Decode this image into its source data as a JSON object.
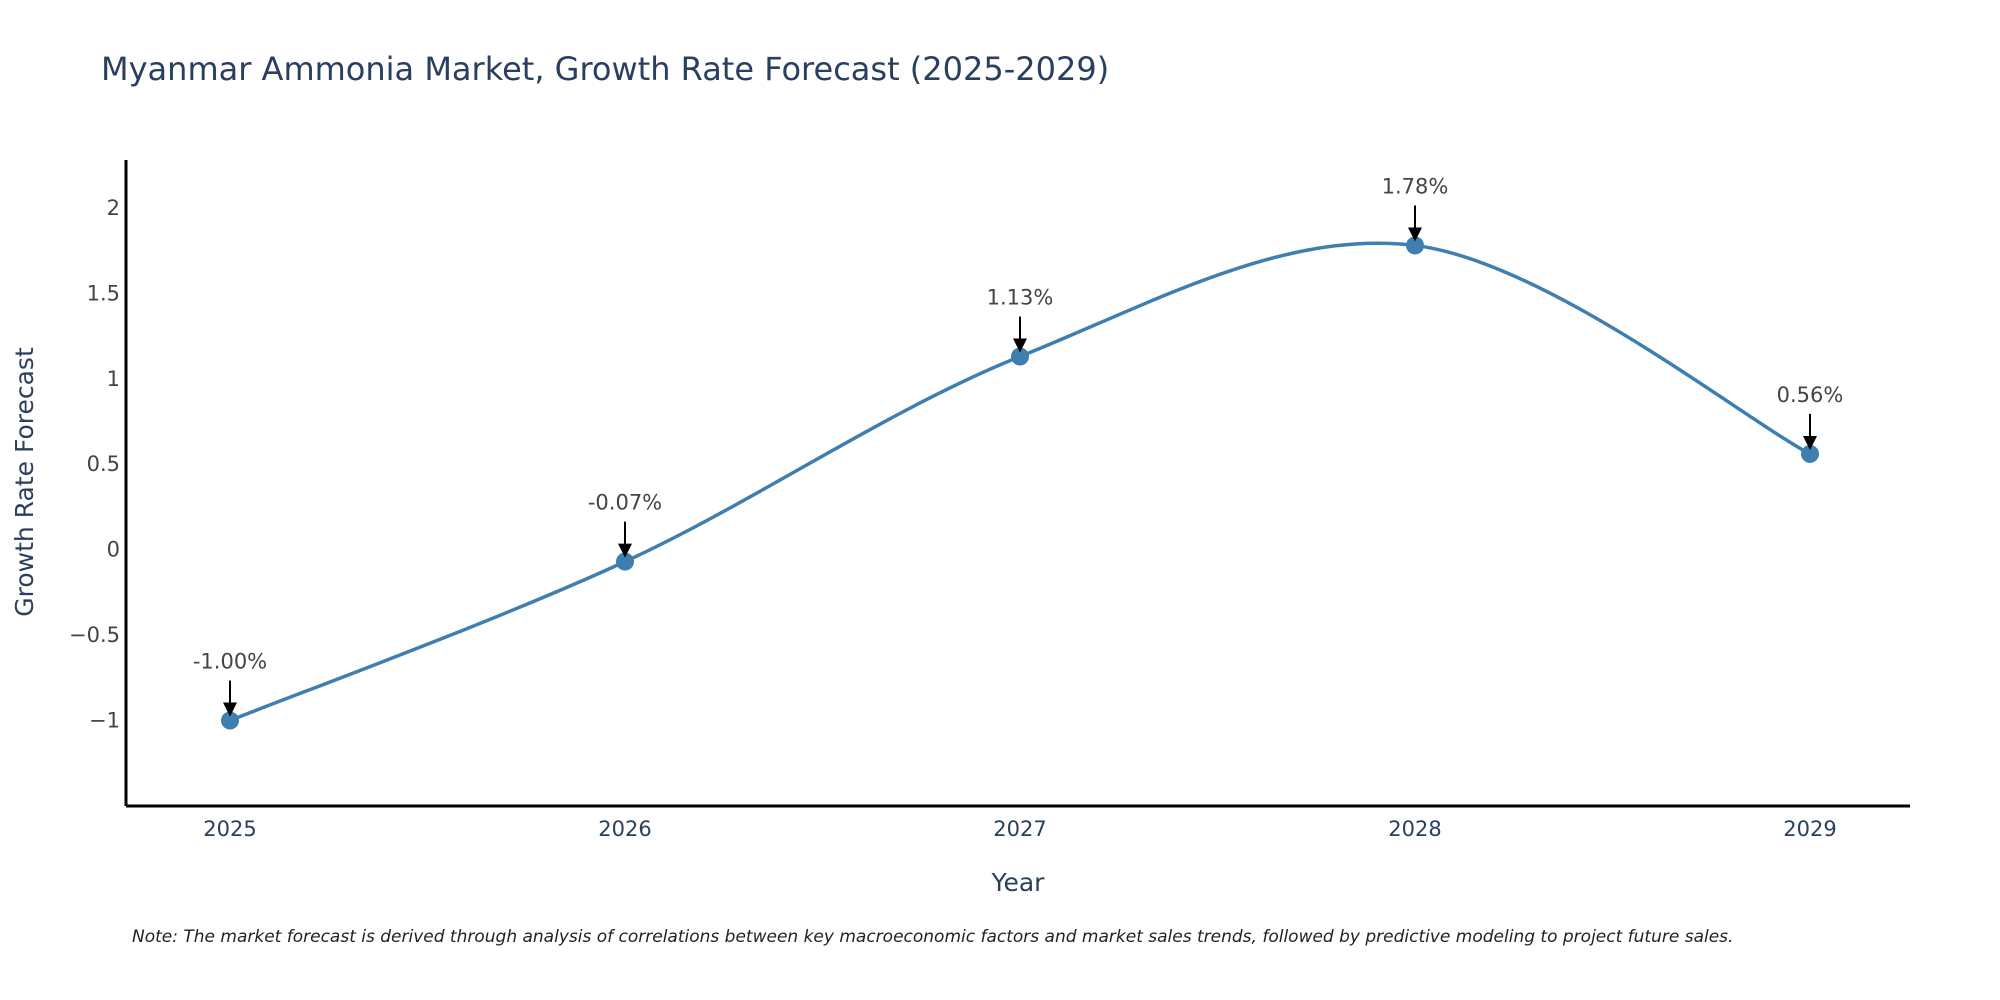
{
  "chart_data": {
    "type": "line",
    "title": "Myanmar Ammonia Market, Growth Rate Forecast (2025-2029)",
    "xlabel": "Year",
    "ylabel": "Growth Rate Forecast",
    "categories": [
      "2025",
      "2026",
      "2027",
      "2028",
      "2029"
    ],
    "values": [
      -1.0,
      -0.07,
      1.13,
      1.78,
      0.56
    ],
    "data_labels": [
      "-1.00%",
      "-0.07%",
      "1.13%",
      "1.78%",
      "0.56%"
    ],
    "ylim": [
      -1.5,
      2.28
    ],
    "yticks": [
      -1,
      -0.5,
      0,
      0.5,
      1,
      1.5,
      2
    ],
    "ytick_labels": [
      "−1",
      "−0.5",
      "0",
      "0.5",
      "1",
      "1.5",
      "2"
    ],
    "line_shape": "spline",
    "grid": false,
    "series_color": "#3f7fb0",
    "note": "Note: The market forecast is derived through analysis of correlations between key macroeconomic factors and market sales trends, followed by predictive modeling to project future sales."
  }
}
